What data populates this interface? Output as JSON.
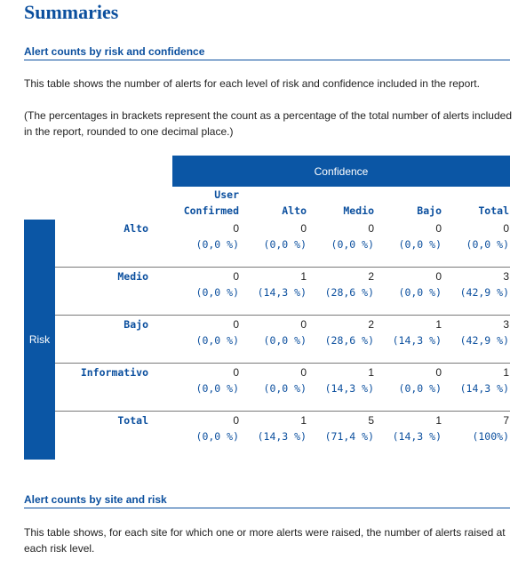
{
  "page_title": "Summaries",
  "section1": {
    "title": "Alert counts by risk and confidence",
    "description": "This table shows the number of alerts for each level of risk and confidence included in the report.",
    "note": "(The percentages in brackets represent the count as a percentage of the total number of alerts included in the report, rounded to one decimal place.)"
  },
  "table": {
    "confidence_header": "Confidence",
    "risk_header": "Risk",
    "columns": [
      "User\nConfirmed",
      "Alto",
      "Medio",
      "Bajo",
      "Total"
    ],
    "rows": [
      {
        "label": "Alto",
        "counts": [
          "0",
          "0",
          "0",
          "0",
          "0"
        ],
        "pcts": [
          "(0,0 %)",
          "(0,0 %)",
          "(0,0 %)",
          "(0,0 %)",
          "(0,0 %)"
        ]
      },
      {
        "label": "Medio",
        "counts": [
          "0",
          "1",
          "2",
          "0",
          "3"
        ],
        "pcts": [
          "(0,0 %)",
          "(14,3 %)",
          "(28,6 %)",
          "(0,0 %)",
          "(42,9 %)"
        ]
      },
      {
        "label": "Bajo",
        "counts": [
          "0",
          "0",
          "2",
          "1",
          "3"
        ],
        "pcts": [
          "(0,0 %)",
          "(0,0 %)",
          "(28,6 %)",
          "(14,3 %)",
          "(42,9 %)"
        ]
      },
      {
        "label": "Informativo",
        "counts": [
          "0",
          "0",
          "1",
          "0",
          "1"
        ],
        "pcts": [
          "(0,0 %)",
          "(0,0 %)",
          "(14,3 %)",
          "(0,0 %)",
          "(14,3 %)"
        ]
      },
      {
        "label": "Total",
        "counts": [
          "0",
          "1",
          "5",
          "1",
          "7"
        ],
        "pcts": [
          "(0,0 %)",
          "(14,3 %)",
          "(71,4 %)",
          "(14,3 %)",
          "(100%)"
        ]
      }
    ]
  },
  "section2": {
    "title": "Alert counts by site and risk",
    "description": "This table shows, for each site for which one or more alerts were raised, the number of alerts raised at each risk level."
  },
  "colors": {
    "accent": "#0b56a5",
    "heading": "#0b4f9e"
  }
}
